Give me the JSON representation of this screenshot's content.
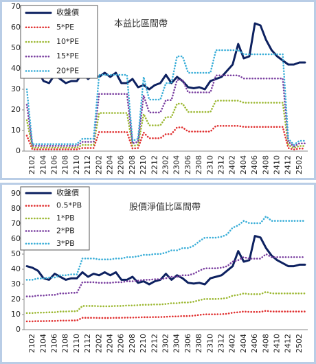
{
  "chart_data": [
    {
      "type": "line",
      "annotation": "本益比區間帶",
      "categories": [
        null,
        "2102",
        null,
        "2104",
        null,
        "2106",
        null,
        "2108",
        null,
        "2110",
        null,
        "2112",
        null,
        "2202",
        null,
        "2204",
        null,
        "2206",
        null,
        "2208",
        null,
        "2210",
        null,
        "2212",
        null,
        "2302",
        null,
        "2304",
        null,
        "2306",
        null,
        "2308",
        null,
        "2310",
        null,
        "2312",
        null,
        "2402",
        null,
        "2404",
        null,
        "2406",
        null,
        "2408",
        null,
        "2410",
        null,
        "2412",
        null,
        "2502",
        null
      ],
      "ylim": [
        0,
        70
      ],
      "yticks": [
        0,
        10,
        20,
        30,
        40,
        50,
        60,
        70
      ],
      "grid": false,
      "legend": "top-left",
      "series": [
        {
          "name": "收盤價",
          "color": "#0d2160",
          "values": [
            42,
            41,
            39,
            34,
            33,
            37,
            35,
            33,
            34,
            34,
            38,
            35,
            37,
            36,
            38,
            36,
            38,
            33,
            33,
            35,
            31,
            32,
            30,
            32,
            33,
            37,
            33,
            36,
            34,
            31,
            30.5,
            31,
            30,
            34,
            35,
            36,
            39,
            42,
            52,
            45,
            46,
            62,
            61,
            54,
            49,
            46,
            44,
            42,
            42,
            43,
            43
          ]
        },
        {
          "name": "5*PE",
          "color": "#e03030",
          "values": [
            7.5,
            0.85,
            0.85,
            0.85,
            0.85,
            0.85,
            0.85,
            0.85,
            0.85,
            0.85,
            1.5,
            1.5,
            1.5,
            9.25,
            9.25,
            9.25,
            9.25,
            9.25,
            9.25,
            1.25,
            1.5,
            9,
            6.25,
            6.25,
            6.25,
            8.25,
            8.25,
            11.5,
            11.5,
            9.5,
            9.5,
            9.5,
            9.5,
            9.5,
            12.25,
            12.25,
            12.25,
            12.25,
            12.25,
            11.75,
            11.75,
            11.75,
            11.75,
            11.75,
            11.75,
            11.75,
            11.75,
            1.5,
            0.75,
            1.25,
            1.25
          ]
        },
        {
          "name": "10*PE",
          "color": "#9cb832",
          "values": [
            15,
            1.7,
            1.7,
            1.7,
            1.7,
            1.7,
            1.7,
            1.7,
            1.7,
            1.7,
            3,
            3,
            3,
            18.5,
            18.5,
            18.5,
            18.5,
            18.5,
            18.5,
            2.5,
            3,
            18,
            12.5,
            12.5,
            12.5,
            16.5,
            16.5,
            23,
            23,
            19,
            19,
            19,
            19,
            19,
            24.5,
            24.5,
            24.5,
            24.5,
            24.5,
            23.5,
            23.5,
            23.5,
            23.5,
            23.5,
            23.5,
            23.5,
            23.5,
            3,
            1.5,
            2.5,
            2.5
          ]
        },
        {
          "name": "15*PE",
          "color": "#7a3fa0",
          "values": [
            22.5,
            2.55,
            2.55,
            2.55,
            2.55,
            2.55,
            2.55,
            2.55,
            2.55,
            2.55,
            4.5,
            4.5,
            4.5,
            27.75,
            27.75,
            27.75,
            27.75,
            27.75,
            27.75,
            3.75,
            4.5,
            27,
            18.75,
            18.75,
            18.75,
            24.75,
            24.75,
            34.5,
            34.5,
            28.5,
            28.5,
            28.5,
            28.5,
            28.5,
            36.75,
            36.75,
            36.75,
            36.75,
            36.75,
            35.25,
            35.25,
            35.25,
            35.25,
            35.25,
            35.25,
            35.25,
            35.25,
            4.5,
            2.25,
            3.75,
            3.75
          ]
        },
        {
          "name": "20*PE",
          "color": "#3aaed8",
          "values": [
            30,
            3.4,
            3.4,
            3.4,
            3.4,
            3.4,
            3.4,
            3.4,
            3.4,
            3.4,
            6,
            6,
            6,
            37,
            37,
            37,
            37,
            37,
            37,
            5,
            6,
            36,
            25,
            25,
            25,
            33,
            33,
            46,
            46,
            38,
            38,
            38,
            38,
            38,
            49,
            49,
            49,
            49,
            49,
            47,
            47,
            47,
            47,
            47,
            47,
            47,
            47,
            6,
            3,
            5,
            5
          ]
        }
      ]
    },
    {
      "type": "line",
      "annotation": "股價淨值比區間帶",
      "categories": [
        null,
        "2102",
        null,
        "2104",
        null,
        "2106",
        null,
        "2108",
        null,
        "2110",
        null,
        "2112",
        null,
        "2202",
        null,
        "2204",
        null,
        "2206",
        null,
        "2208",
        null,
        "2210",
        null,
        "2212",
        null,
        "2302",
        null,
        "2304",
        null,
        "2306",
        null,
        "2308",
        null,
        "2310",
        null,
        "2312",
        null,
        "2402",
        null,
        "2404",
        null,
        "2406",
        null,
        "2408",
        null,
        "2410",
        null,
        "2412",
        null,
        "2502",
        null
      ],
      "ylim": [
        0,
        90
      ],
      "yticks": [
        0,
        10,
        20,
        30,
        40,
        50,
        60,
        70,
        80,
        90
      ],
      "grid": false,
      "legend": "top-left",
      "series": [
        {
          "name": "收盤價",
          "color": "#0d2160",
          "values": [
            42,
            41,
            39,
            34,
            33,
            37,
            35,
            33,
            34,
            34,
            38,
            35,
            37,
            36,
            38,
            36,
            38,
            33,
            33,
            35,
            31,
            32,
            30,
            32,
            33,
            37,
            33,
            36,
            34,
            31,
            30.5,
            31,
            30,
            34,
            35,
            36,
            39,
            42,
            52,
            45,
            46,
            62,
            61,
            54,
            49,
            46,
            44,
            42,
            42,
            43,
            43
          ]
        },
        {
          "name": "0.5*PB",
          "color": "#e03030",
          "values": [
            5.5,
            5.5,
            5.65,
            5.65,
            5.75,
            5.75,
            6,
            6,
            6.1,
            6.1,
            7.85,
            7.85,
            7.85,
            7.75,
            7.75,
            7.75,
            7.85,
            7.85,
            8,
            8,
            8.1,
            8.25,
            8.25,
            8.35,
            8.35,
            8.5,
            8.75,
            8.75,
            9,
            9,
            9.25,
            9.75,
            10.15,
            10.15,
            10.15,
            10.25,
            10.5,
            11.25,
            11.5,
            12,
            11.75,
            11.75,
            11.75,
            12.5,
            12,
            12,
            12,
            12,
            12,
            12,
            12
          ]
        },
        {
          "name": "1*PB",
          "color": "#9cb832",
          "values": [
            11,
            11,
            11.3,
            11.3,
            11.5,
            11.5,
            12,
            12,
            12.2,
            12.2,
            15.7,
            15.7,
            15.7,
            15.5,
            15.5,
            15.5,
            15.7,
            15.7,
            16,
            16,
            16.2,
            16.5,
            16.5,
            16.7,
            16.7,
            17,
            17.5,
            17.5,
            18,
            18,
            18.5,
            19.5,
            20.3,
            20.3,
            20.3,
            20.5,
            21,
            22.5,
            23,
            24,
            23.5,
            23.5,
            23.5,
            25,
            24,
            24,
            24,
            24,
            24,
            24,
            24
          ]
        },
        {
          "name": "2*PB",
          "color": "#7a3fa0",
          "values": [
            22,
            22,
            22.6,
            22.6,
            23,
            23,
            24,
            24,
            24.4,
            24.4,
            31.4,
            31.4,
            31.4,
            31,
            31,
            31,
            31.4,
            31.4,
            32,
            32,
            32.4,
            33,
            33,
            33.4,
            33.4,
            34,
            35,
            35,
            36,
            36,
            37,
            39,
            40.6,
            40.6,
            40.6,
            41,
            42,
            45,
            46,
            48,
            47,
            47,
            47,
            50,
            48,
            48,
            48,
            48,
            48,
            48,
            48
          ]
        },
        {
          "name": "3*PB",
          "color": "#3aaed8",
          "values": [
            33,
            33,
            33.9,
            33.9,
            34.5,
            34.5,
            36,
            36,
            36.6,
            36.6,
            47.1,
            47.1,
            47.1,
            46.5,
            46.5,
            46.5,
            47.1,
            47.1,
            48,
            48,
            48.6,
            49.5,
            49.5,
            50.1,
            50.1,
            51,
            52.5,
            52.5,
            54,
            54,
            55.5,
            58.5,
            60.9,
            60.9,
            60.9,
            61.5,
            63,
            67.5,
            69,
            72,
            70.5,
            70.5,
            70.5,
            75,
            72,
            72,
            72,
            72,
            72,
            72,
            72
          ]
        }
      ]
    }
  ]
}
